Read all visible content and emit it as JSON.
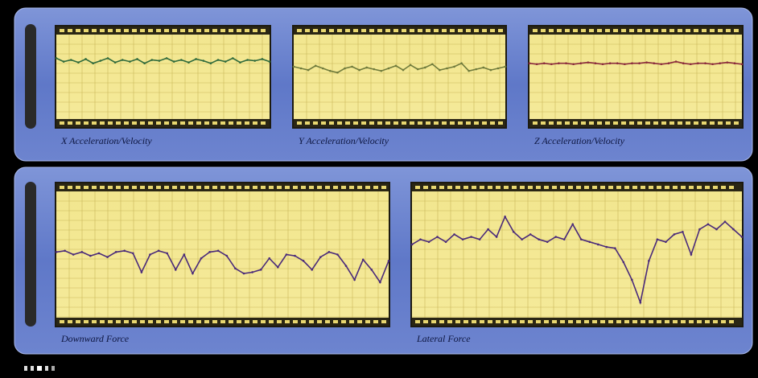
{
  "chart_data": [
    {
      "type": "line",
      "title": "X Acceleration/Velocity",
      "color": "#2f6a3c",
      "ylim": [
        0,
        100
      ],
      "values": [
        72,
        68,
        70,
        67,
        71,
        66,
        69,
        72,
        67,
        70,
        68,
        71,
        66,
        70,
        69,
        72,
        68,
        70,
        67,
        71,
        69,
        66,
        70,
        68,
        72,
        67,
        70,
        69,
        71,
        68
      ]
    },
    {
      "type": "line",
      "title": "Y Acceleration/Velocity",
      "color": "#6f7b3c",
      "ylim": [
        0,
        100
      ],
      "values": [
        62,
        60,
        58,
        63,
        60,
        57,
        55,
        60,
        62,
        58,
        61,
        59,
        57,
        60,
        63,
        58,
        64,
        59,
        61,
        65,
        58,
        60,
        62,
        66,
        57,
        59,
        61,
        58,
        60,
        62
      ]
    },
    {
      "type": "line",
      "title": "Z Acceleration/Velocity",
      "color": "#8a2a3c",
      "ylim": [
        0,
        100
      ],
      "values": [
        66,
        65,
        66,
        65,
        66,
        66,
        65,
        66,
        67,
        66,
        65,
        66,
        66,
        65,
        66,
        66,
        67,
        66,
        65,
        66,
        68,
        66,
        65,
        66,
        66,
        65,
        66,
        67,
        66,
        65
      ]
    },
    {
      "type": "line",
      "title": "Downward Force",
      "color": "#4a2a7a",
      "ylim": [
        0,
        100
      ],
      "values": [
        52,
        53,
        50,
        52,
        49,
        51,
        48,
        52,
        53,
        51,
        36,
        50,
        53,
        51,
        38,
        50,
        35,
        47,
        52,
        53,
        49,
        39,
        35,
        36,
        38,
        47,
        40,
        50,
        49,
        45,
        38,
        48,
        52,
        50,
        41,
        30,
        46,
        38,
        28,
        45
      ]
    },
    {
      "type": "line",
      "title": "Lateral Force",
      "color": "#4a2a7a",
      "ylim": [
        0,
        100
      ],
      "values": [
        58,
        62,
        60,
        64,
        60,
        66,
        62,
        64,
        62,
        70,
        64,
        80,
        68,
        62,
        66,
        62,
        60,
        64,
        62,
        74,
        62,
        60,
        58,
        56,
        55,
        44,
        30,
        12,
        45,
        62,
        60,
        66,
        68,
        50,
        70,
        74,
        70,
        76,
        70,
        64
      ]
    }
  ]
}
